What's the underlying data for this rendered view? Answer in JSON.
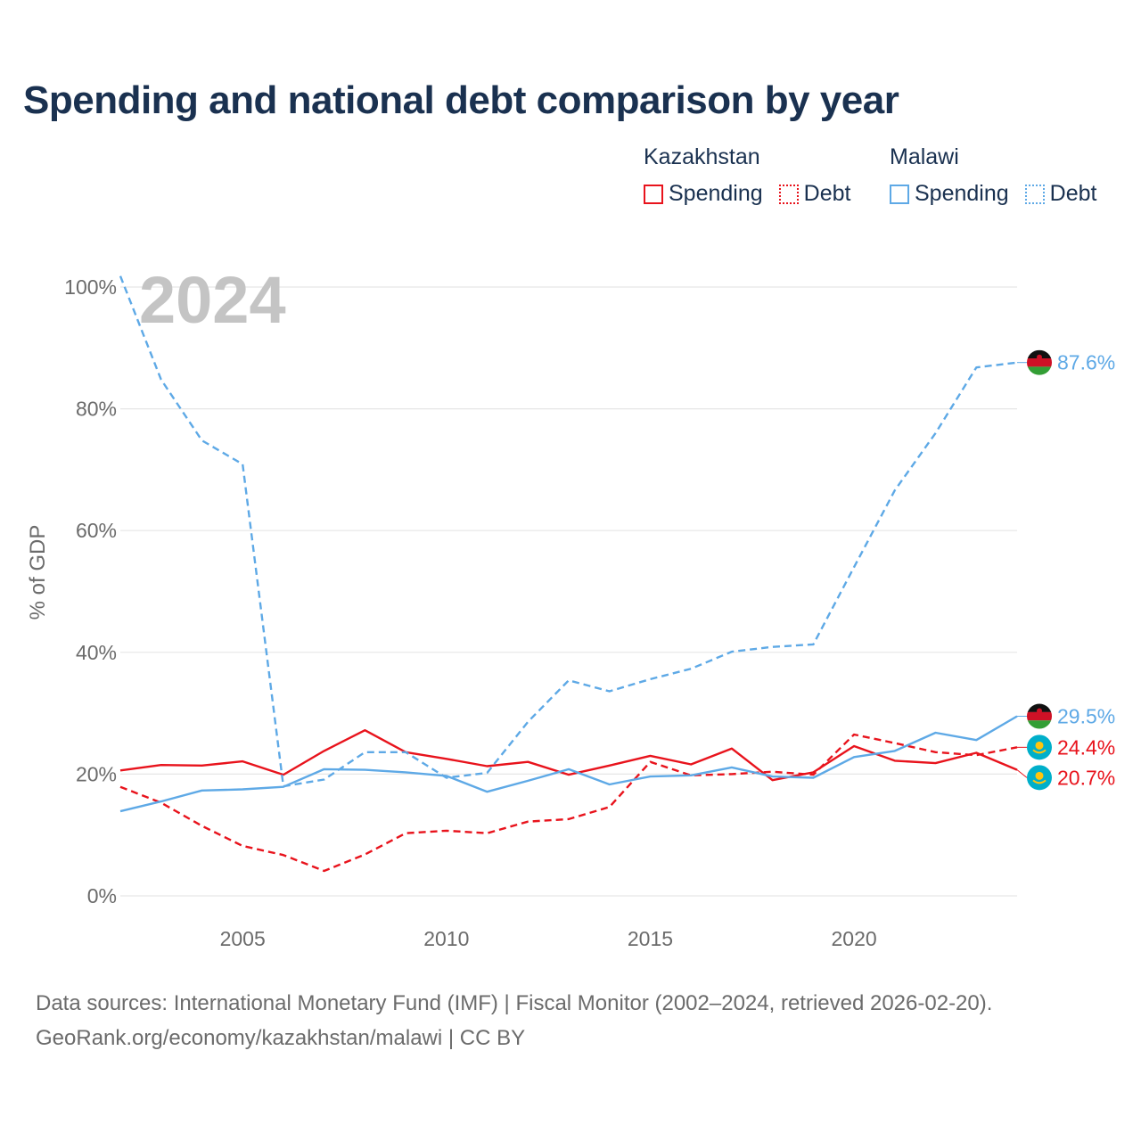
{
  "title": "Spending and national debt comparison by year",
  "legend": {
    "groups": [
      {
        "country": "Kazakhstan",
        "spending_label": "Spending",
        "debt_label": "Debt",
        "color": "#e8131c"
      },
      {
        "country": "Malawi",
        "spending_label": "Spending",
        "debt_label": "Debt",
        "color": "#5ea9e6"
      }
    ]
  },
  "footer": {
    "line1": "Data sources: International Monetary Fund (IMF) | Fiscal Monitor (2002–2024, retrieved 2026-02-20).",
    "line2": "GeoRank.org/economy/kazakhstan/malawi | CC BY"
  },
  "chart_data": {
    "type": "line",
    "title": "Spending and national debt comparison by year",
    "watermark_year": "2024",
    "ylabel": "% of GDP",
    "xlabel": "",
    "xlim": [
      2002,
      2024
    ],
    "ylim": [
      0,
      100
    ],
    "x_ticks": [
      2005,
      2010,
      2015,
      2020
    ],
    "y_ticks": [
      0,
      20,
      40,
      60,
      80,
      100
    ],
    "y_tick_labels": [
      "0%",
      "20%",
      "40%",
      "60%",
      "80%",
      "100%"
    ],
    "grid": true,
    "x": [
      2002,
      2003,
      2004,
      2005,
      2006,
      2007,
      2008,
      2009,
      2010,
      2011,
      2012,
      2013,
      2014,
      2015,
      2016,
      2017,
      2018,
      2019,
      2020,
      2021,
      2022,
      2023,
      2024
    ],
    "series": [
      {
        "name": "Kazakhstan Spending",
        "country": "Kazakhstan",
        "kind": "Spending",
        "color": "#e8131c",
        "dash": false,
        "values": [
          20.6,
          21.5,
          21.4,
          22.1,
          19.9,
          23.8,
          27.2,
          23.6,
          22.5,
          21.3,
          22.0,
          19.9,
          21.4,
          23.0,
          21.6,
          24.2,
          19.0,
          20.3,
          24.6,
          22.2,
          21.8,
          23.5,
          20.7
        ]
      },
      {
        "name": "Kazakhstan Debt",
        "country": "Kazakhstan",
        "kind": "Debt",
        "color": "#e8131c",
        "dash": true,
        "values": [
          17.9,
          15.3,
          11.5,
          8.2,
          6.7,
          4.1,
          6.8,
          10.3,
          10.7,
          10.3,
          12.2,
          12.6,
          14.6,
          22.0,
          19.8,
          20.0,
          20.4,
          19.9,
          26.5,
          25.1,
          23.6,
          23.1,
          24.4
        ]
      },
      {
        "name": "Malawi Spending",
        "country": "Malawi",
        "kind": "Spending",
        "color": "#5ea9e6",
        "dash": false,
        "values": [
          13.9,
          15.5,
          17.3,
          17.5,
          17.9,
          20.8,
          20.7,
          20.3,
          19.7,
          17.1,
          18.9,
          20.8,
          18.3,
          19.6,
          19.8,
          21.1,
          19.6,
          19.4,
          22.8,
          23.8,
          26.8,
          25.6,
          29.5
        ]
      },
      {
        "name": "Malawi Debt",
        "country": "Malawi",
        "kind": "Debt",
        "color": "#5ea9e6",
        "dash": true,
        "values": [
          101.8,
          84.8,
          74.8,
          70.9,
          18.0,
          19.1,
          23.6,
          23.6,
          19.4,
          20.2,
          28.6,
          35.4,
          33.6,
          35.6,
          37.3,
          40.1,
          40.9,
          41.3,
          54.0,
          66.6,
          76.0,
          86.8,
          87.6
        ]
      }
    ],
    "end_labels": [
      {
        "series": "Malawi Debt",
        "text": "87.6%",
        "color": "#5ea9e6",
        "flag": "malawi",
        "value": 87.6
      },
      {
        "series": "Malawi Spending",
        "text": "29.5%",
        "color": "#5ea9e6",
        "flag": "malawi",
        "value": 29.5
      },
      {
        "series": "Kazakhstan Debt",
        "text": "24.4%",
        "color": "#e8131c",
        "flag": "kazakhstan",
        "value": 24.4
      },
      {
        "series": "Kazakhstan Spending",
        "text": "20.7%",
        "color": "#e8131c",
        "flag": "kazakhstan",
        "value": 20.7
      }
    ]
  }
}
